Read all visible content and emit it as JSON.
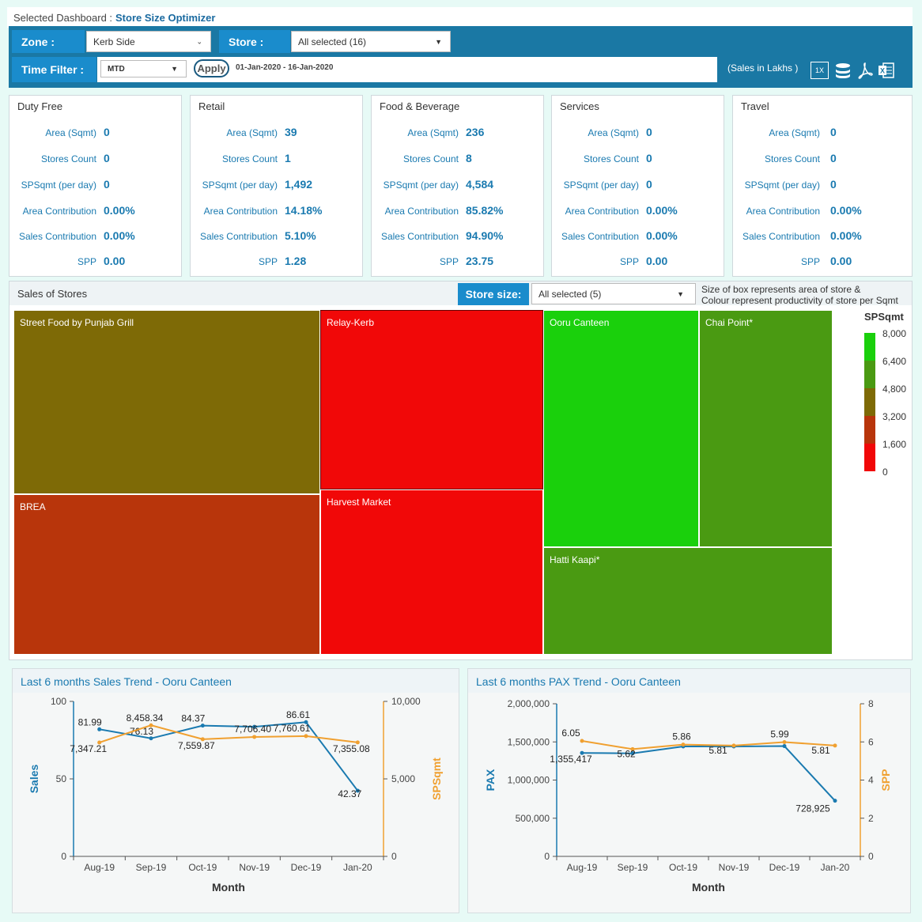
{
  "header": {
    "prefix": "Selected Dashboard :",
    "dashboard_name": "Store Size Optimizer"
  },
  "filters": {
    "zone_label": "Zone :",
    "zone_value": "Kerb Side",
    "store_label": "Store :",
    "store_value": "All selected (16)",
    "time_label": "Time Filter :",
    "time_value": "MTD",
    "apply_label": "Apply",
    "date_range": "01-Jan-2020 - 16-Jan-2020",
    "sales_unit": "(Sales in Lakhs )",
    "icon_scale": "1X"
  },
  "summary_labels": {
    "area": "Area (Sqmt)",
    "stores": "Stores Count",
    "spsqmt": "SPSqmt (per day)",
    "area_contrib": "Area Contribution",
    "sales_contrib": "Sales Contribution",
    "spp": "SPP"
  },
  "cards": [
    {
      "title": "Duty Free",
      "area": "0",
      "stores": "0",
      "spsqmt": "0",
      "area_contrib": "0.00%",
      "sales_contrib": "0.00%",
      "spp": "0.00"
    },
    {
      "title": "Retail",
      "area": "39",
      "stores": "1",
      "spsqmt": "1,492",
      "area_contrib": "14.18%",
      "sales_contrib": "5.10%",
      "spp": "1.28"
    },
    {
      "title": "Food & Beverage",
      "area": "236",
      "stores": "8",
      "spsqmt": "4,584",
      "area_contrib": "85.82%",
      "sales_contrib": "94.90%",
      "spp": "23.75"
    },
    {
      "title": "Services",
      "area": "0",
      "stores": "0",
      "spsqmt": "0",
      "area_contrib": "0.00%",
      "sales_contrib": "0.00%",
      "spp": "0.00"
    },
    {
      "title": "Travel",
      "area": "0",
      "stores": "0",
      "spsqmt": "0",
      "area_contrib": "0.00%",
      "sales_contrib": "0.00%",
      "spp": "0.00"
    }
  ],
  "treemap": {
    "title": "Sales of Stores",
    "store_size_label": "Store size:",
    "store_size_value": "All selected (5)",
    "note_line1": "Size of box represents area of store &",
    "note_line2": "Colour represent productivity of store per Sqmt",
    "tiles": [
      {
        "name": "Street Food by Punjab Grill",
        "color": "#7e6a06"
      },
      {
        "name": "BREA",
        "color": "#b8350b"
      },
      {
        "name": "Relay-Kerb",
        "color": "#f10808"
      },
      {
        "name": "Harvest Market",
        "color": "#f10808"
      },
      {
        "name": "Ooru Canteen",
        "color": "#1ad00c"
      },
      {
        "name": "Chai Point*",
        "color": "#4a9a12"
      },
      {
        "name": "Hatti Kaapi*",
        "color": "#4a9a12"
      }
    ],
    "legend_title": "SPSqmt",
    "legend_ticks": [
      "8,000",
      "6,400",
      "4,800",
      "3,200",
      "1,600",
      "0"
    ],
    "legend_colors": [
      "#1ad00c",
      "#4a9a12",
      "#7e6a06",
      "#b8350b",
      "#f10808"
    ]
  },
  "chart_data": [
    {
      "type": "line",
      "title": "Last 6 months Sales Trend - Ooru Canteen",
      "xlabel": "Month",
      "ylabel": "Sales",
      "y2label": "SPSqmt",
      "categories": [
        "Aug-19",
        "Sep-19",
        "Oct-19",
        "Nov-19",
        "Dec-19",
        "Jan-20"
      ],
      "ylim": [
        0,
        100
      ],
      "y_ticks": [
        "0",
        "50",
        "100"
      ],
      "y2lim": [
        0,
        10000
      ],
      "y2_ticks": [
        "0",
        "5,000",
        "10,000"
      ],
      "series": [
        {
          "axis": "left",
          "color": "#1a7ab0",
          "values": [
            81.99,
            76.13,
            84.37,
            83.6,
            86.61,
            42.37
          ],
          "labels": [
            "81.99",
            "76.13",
            "84.37",
            "",
            "86.61",
            "42.37"
          ]
        },
        {
          "axis": "right",
          "color": "#f0a030",
          "values": [
            7347.21,
            8458.34,
            7559.87,
            7706.4,
            7760.61,
            7355.08
          ],
          "labels": [
            "7,347.21",
            "8,458.34",
            "7,559.87",
            "7,706.40",
            "7,760.61",
            "7,355.08"
          ]
        }
      ],
      "colors": {
        "left": "#1a7ab0",
        "right": "#f0a030"
      }
    },
    {
      "type": "line",
      "title": "Last 6 months PAX Trend - Ooru Canteen",
      "xlabel": "Month",
      "ylabel": "PAX",
      "y2label": "SPP",
      "categories": [
        "Aug-19",
        "Sep-19",
        "Oct-19",
        "Nov-19",
        "Dec-19",
        "Jan-20"
      ],
      "ylim": [
        0,
        2000000
      ],
      "y_ticks": [
        "0",
        "500,000",
        "1,000,000",
        "1,500,000",
        "2,000,000"
      ],
      "y2lim": [
        0,
        8
      ],
      "y2_ticks": [
        "0",
        "2",
        "4",
        "6",
        "8"
      ],
      "series": [
        {
          "axis": "left",
          "color": "#1a7ab0",
          "values": [
            1355417,
            1350000,
            1440000,
            1440000,
            1445000,
            728925
          ],
          "labels": [
            "1,355,417",
            "",
            "",
            "",
            "",
            "728,925"
          ]
        },
        {
          "axis": "right",
          "color": "#f0a030",
          "values": [
            6.05,
            5.62,
            5.86,
            5.81,
            5.99,
            5.81
          ],
          "labels": [
            "6.05",
            "5.62",
            "5.86",
            "5.81",
            "5.99",
            "5.81"
          ]
        }
      ],
      "colors": {
        "left": "#1a7ab0",
        "right": "#f0a030"
      }
    }
  ]
}
